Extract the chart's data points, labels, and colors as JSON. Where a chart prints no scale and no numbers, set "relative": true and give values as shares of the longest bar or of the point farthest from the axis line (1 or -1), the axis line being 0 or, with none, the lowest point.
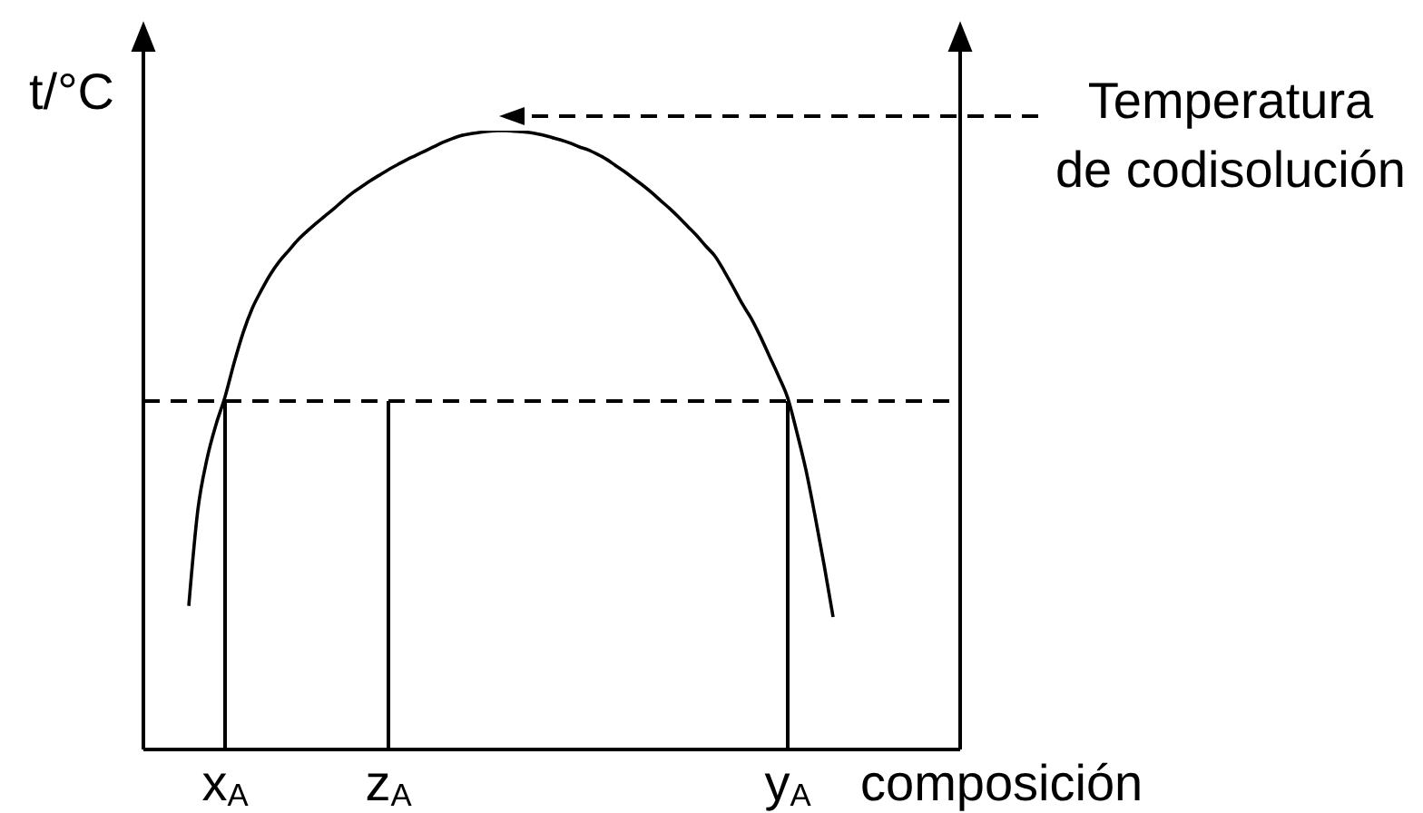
{
  "chart_data": {
    "type": "line",
    "relative": true,
    "ylabel": "t/°C",
    "xlabel": "composición",
    "marker": "none",
    "categories": [
      null,
      null,
      null,
      null,
      null,
      null,
      null,
      null,
      null,
      "x$_{A}$",
      null,
      null,
      null,
      null,
      null,
      null,
      null,
      null,
      null,
      null,
      null,
      null,
      null,
      null,
      null,
      null,
      null,
      "z$_{A}$",
      null,
      null,
      null,
      null,
      null,
      null,
      null,
      null,
      null,
      null,
      null,
      null,
      null,
      null,
      null,
      null,
      null,
      null,
      null,
      null,
      null,
      null,
      null,
      null,
      null,
      null,
      null,
      null,
      null,
      null,
      null,
      null,
      null,
      null,
      null,
      null,
      null,
      null,
      null,
      null,
      null,
      null,
      null,
      "y$_{A}$",
      null,
      null,
      null,
      null,
      null,
      null,
      null,
      null,
      null,
      null,
      null,
      null,
      null,
      null,
      null,
      null,
      null,
      null,
      null
    ],
    "series": [
      {
        "color": "#000000",
        "values": [
          null,
          null,
          null,
          null,
          null,
          0.232,
          0.387,
          0.469,
          0.525,
          0.57,
          0.625,
          0.674,
          0.713,
          0.742,
          0.768,
          0.789,
          0.806,
          0.823,
          0.837,
          0.85,
          0.862,
          0.874,
          0.887,
          0.899,
          0.909,
          0.919,
          0.928,
          0.937,
          0.945,
          0.953,
          0.96,
          0.967,
          0.974,
          0.981,
          0.987,
          0.992,
          0.995,
          0.997,
          0.999,
          1,
          1,
          0.999,
          0.998,
          0.996,
          0.993,
          0.989,
          0.985,
          0.98,
          0.974,
          0.969,
          0.962,
          0.954,
          0.944,
          0.934,
          0.923,
          0.912,
          0.9,
          0.887,
          0.874,
          0.86,
          0.845,
          0.83,
          0.813,
          0.797,
          0.773,
          0.747,
          0.72,
          0.696,
          0.667,
          0.635,
          0.603,
          0.568,
          0.513,
          0.452,
          0.378,
          0.299,
          0.214,
          null,
          null,
          null,
          null,
          null,
          null,
          null,
          null,
          null,
          null,
          null,
          null,
          null,
          null
        ]
      },
      {
        "color": "#000000",
        "x": [
          "x$_{A}$",
          "x$_{A}$"
        ],
        "values": [
          0,
          0.563
        ]
      },
      {
        "color": "#000000",
        "x": [
          "z$_{A}$",
          "z$_{A}$"
        ],
        "values": [
          0,
          0.563
        ]
      },
      {
        "color": "#000000",
        "x": [
          "y$_{A}$",
          "y$_{A}$"
        ],
        "values": [
          0,
          0.563
        ]
      }
    ],
    "ref_lines": [
      {
        "axis": "y",
        "value": 0.563,
        "line_style": "dashed",
        "color": "#000000"
      }
    ],
    "annotations": [
      "Temperatura de codisolución"
    ]
  }
}
